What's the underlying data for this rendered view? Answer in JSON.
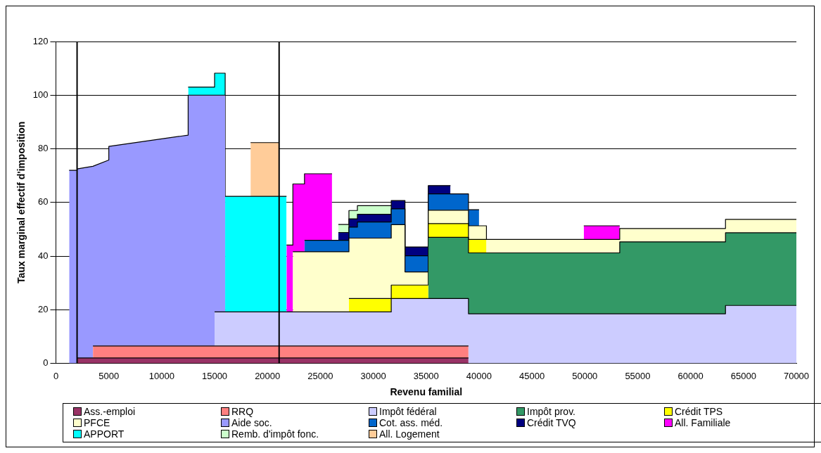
{
  "chart_data": {
    "type": "area",
    "stacked": true,
    "xlabel": "Revenu familial",
    "ylabel": "Taux marginal effectif d'imposition",
    "x": [
      1250,
      2000,
      2000,
      3500,
      3500,
      5000,
      5000,
      12500,
      12500,
      15000,
      15000,
      16000,
      16000,
      18400,
      18400,
      21100,
      21100,
      21800,
      21800,
      22400,
      22400,
      23500,
      23500,
      26100,
      26100,
      26700,
      26700,
      27700,
      27700,
      28500,
      28500,
      31700,
      31700,
      33000,
      33000,
      35200,
      35200,
      37300,
      37300,
      39000,
      39000,
      40000,
      40000,
      40700,
      40700,
      49900,
      49900,
      53300,
      53300,
      63300,
      63300,
      70000
    ],
    "series": [
      {
        "name": "Ass.-emploi",
        "color": "#993366",
        "values": [
          null,
          null,
          2,
          2,
          2,
          2,
          2,
          2,
          2,
          2,
          2,
          2,
          2,
          2,
          2,
          2,
          2,
          2,
          2,
          2,
          2,
          2,
          2,
          2,
          2,
          2,
          2,
          2,
          2,
          2,
          2,
          2,
          2,
          2,
          2,
          2,
          2,
          2,
          2,
          2,
          null,
          null,
          null,
          null,
          null,
          null,
          null,
          null,
          null,
          null,
          null,
          null
        ]
      },
      {
        "name": "RRQ",
        "color": "#ff8080",
        "values": [
          null,
          null,
          null,
          null,
          4.5,
          4.5,
          4.5,
          4.5,
          4.5,
          4.5,
          4.5,
          4.5,
          4.5,
          4.5,
          4.5,
          4.5,
          4.5,
          4.5,
          4.5,
          4.5,
          4.5,
          4.5,
          4.5,
          4.5,
          4.5,
          4.5,
          4.5,
          4.5,
          4.5,
          4.5,
          4.5,
          4.5,
          4.5,
          4.5,
          4.5,
          4.5,
          4.5,
          4.5,
          4.5,
          4.5,
          null,
          null,
          null,
          null,
          null,
          null,
          null,
          null,
          null,
          null,
          null,
          null
        ]
      },
      {
        "name": "Impôt fédéral",
        "color": "#ccccff",
        "values": [
          null,
          null,
          null,
          null,
          null,
          null,
          null,
          null,
          null,
          null,
          12.7,
          12.7,
          12.7,
          12.7,
          12.7,
          12.7,
          12.7,
          12.7,
          12.7,
          12.7,
          12.7,
          12.7,
          12.7,
          12.7,
          12.7,
          12.7,
          12.7,
          12.7,
          12.7,
          12.7,
          12.7,
          12.7,
          17.7,
          17.7,
          17.7,
          17.7,
          17.7,
          17.7,
          17.7,
          17.7,
          18.5,
          18.5,
          18.5,
          18.5,
          18.5,
          18.5,
          18.5,
          18.5,
          18.5,
          18.5,
          21.6,
          21.6
        ]
      },
      {
        "name": "Impôt prov.",
        "color": "#339966",
        "values": [
          null,
          null,
          null,
          null,
          null,
          null,
          null,
          null,
          null,
          null,
          null,
          null,
          null,
          null,
          null,
          null,
          null,
          null,
          null,
          null,
          null,
          null,
          null,
          null,
          null,
          null,
          null,
          null,
          null,
          null,
          null,
          null,
          null,
          null,
          null,
          null,
          22.8,
          22.8,
          22.8,
          22.8,
          22.7,
          22.7,
          22.7,
          22.7,
          22.7,
          22.7,
          22.7,
          22.7,
          26.8,
          26.8,
          27.1,
          27.1
        ]
      },
      {
        "name": "Crédit TPS",
        "color": "#ffff00",
        "values": [
          null,
          null,
          null,
          null,
          null,
          null,
          null,
          null,
          null,
          null,
          null,
          null,
          null,
          null,
          null,
          null,
          null,
          null,
          null,
          null,
          null,
          null,
          null,
          null,
          null,
          null,
          null,
          null,
          5,
          5,
          5,
          5,
          5,
          5,
          5,
          5,
          5.1,
          5.1,
          5.1,
          5.1,
          5,
          5,
          5,
          5,
          null,
          null,
          null,
          null,
          null,
          null,
          null,
          null
        ]
      },
      {
        "name": "PFCE",
        "color": "#ffffcc",
        "values": [
          null,
          null,
          null,
          null,
          null,
          null,
          null,
          null,
          null,
          null,
          null,
          null,
          null,
          null,
          null,
          null,
          null,
          null,
          null,
          null,
          22.4,
          22.4,
          22.4,
          22.4,
          22.4,
          22.4,
          22.4,
          22.4,
          22.5,
          22.5,
          22.5,
          22.5,
          22.5,
          22.5,
          4.9,
          4.9,
          5,
          5,
          5,
          5,
          5.1,
          5.1,
          5.1,
          5.1,
          5,
          5,
          5,
          5,
          5,
          5,
          5,
          5
        ]
      },
      {
        "name": "Aide soc.",
        "color": "#9999ff",
        "values": [
          72,
          72,
          70.5,
          71.5,
          67,
          69.3,
          74.4,
          78.6,
          93.5,
          93.5,
          80.8,
          80.8,
          null,
          null,
          null,
          null,
          null,
          null,
          null,
          null,
          null,
          null,
          null,
          null,
          null,
          null,
          null,
          null,
          null,
          null,
          null,
          null,
          null,
          null,
          null,
          null,
          null,
          null,
          null,
          null,
          null,
          null,
          null,
          null,
          null,
          null,
          null,
          null,
          null,
          null,
          null,
          null
        ]
      },
      {
        "name": "Cot. ass. méd.",
        "color": "#0066cc",
        "values": [
          null,
          null,
          null,
          null,
          null,
          null,
          null,
          null,
          null,
          null,
          null,
          null,
          null,
          null,
          null,
          null,
          null,
          null,
          null,
          null,
          null,
          null,
          4.3,
          4.3,
          4.3,
          4.3,
          4.3,
          4.3,
          4.1,
          4.1,
          6,
          6,
          5.9,
          5.9,
          6,
          6,
          6.1,
          6.1,
          6.1,
          6.1,
          6,
          6,
          null,
          null,
          null,
          null,
          null,
          null,
          null,
          null,
          null,
          null
        ]
      },
      {
        "name": "Crédit TVQ",
        "color": "#000080",
        "values": [
          null,
          null,
          null,
          null,
          null,
          null,
          null,
          null,
          null,
          null,
          null,
          null,
          null,
          null,
          null,
          null,
          null,
          null,
          null,
          null,
          null,
          null,
          null,
          null,
          null,
          null,
          2.9,
          2.9,
          3.1,
          3.1,
          2.9,
          2.9,
          3.1,
          3.1,
          3.3,
          3.3,
          3.1,
          3.1,
          null,
          null,
          null,
          null,
          null,
          null,
          null,
          null,
          null,
          null,
          null,
          null,
          null,
          null
        ]
      },
      {
        "name": "All. Familiale",
        "color": "#ff00ff",
        "values": [
          null,
          null,
          null,
          null,
          null,
          null,
          null,
          null,
          null,
          null,
          null,
          null,
          null,
          null,
          null,
          null,
          null,
          null,
          24.9,
          24.9,
          25.3,
          25.3,
          24.8,
          24.8,
          null,
          null,
          null,
          null,
          null,
          null,
          null,
          null,
          null,
          null,
          null,
          null,
          null,
          null,
          null,
          null,
          null,
          null,
          null,
          null,
          null,
          null,
          5.1,
          5.1,
          null,
          null,
          null,
          null
        ]
      },
      {
        "name": "APPORT",
        "color": "#00ffff",
        "values": [
          null,
          null,
          null,
          null,
          null,
          null,
          null,
          null,
          3,
          3,
          8.2,
          8.2,
          43.1,
          43.1,
          43.1,
          43.1,
          43.1,
          43.1,
          null,
          null,
          null,
          null,
          null,
          null,
          null,
          null,
          null,
          null,
          null,
          null,
          null,
          null,
          null,
          null,
          null,
          null,
          null,
          null,
          null,
          null,
          null,
          null,
          null,
          null,
          null,
          null,
          null,
          null,
          null,
          null,
          null,
          null
        ]
      },
      {
        "name": "Remb. d'impôt fonc.",
        "color": "#ccffcc",
        "values": [
          null,
          null,
          null,
          null,
          null,
          null,
          null,
          null,
          null,
          null,
          null,
          null,
          null,
          null,
          null,
          null,
          null,
          null,
          null,
          null,
          null,
          null,
          null,
          null,
          null,
          null,
          3,
          3,
          3.1,
          3.1,
          3.2,
          3.2,
          null,
          null,
          null,
          null,
          null,
          null,
          null,
          null,
          null,
          null,
          null,
          null,
          null,
          null,
          null,
          null,
          null,
          null,
          null,
          null
        ]
      },
      {
        "name": "All. Logement",
        "color": "#ffcc99",
        "values": [
          null,
          null,
          null,
          null,
          null,
          null,
          null,
          null,
          null,
          null,
          null,
          null,
          null,
          null,
          20,
          20,
          null,
          null,
          null,
          null,
          null,
          null,
          null,
          null,
          null,
          null,
          null,
          null,
          null,
          null,
          null,
          null,
          null,
          null,
          null,
          null,
          null,
          null,
          null,
          null,
          null,
          null,
          null,
          null,
          null,
          null,
          null,
          null,
          null,
          null,
          null,
          null
        ]
      }
    ],
    "ref_lines": [
      {
        "axis": "x",
        "value": 2000,
        "color": "#000000"
      },
      {
        "axis": "x",
        "value": 21100,
        "color": "#000000"
      }
    ],
    "xlim": [
      0,
      70000
    ],
    "xticks": [
      0,
      5000,
      10000,
      15000,
      20000,
      25000,
      30000,
      35000,
      40000,
      45000,
      50000,
      55000,
      60000,
      65000,
      70000
    ],
    "ylim": [
      0,
      120
    ],
    "yticks": [
      0,
      20,
      40,
      60,
      80,
      100,
      120
    ],
    "grid": "y",
    "legend": "bottom"
  }
}
